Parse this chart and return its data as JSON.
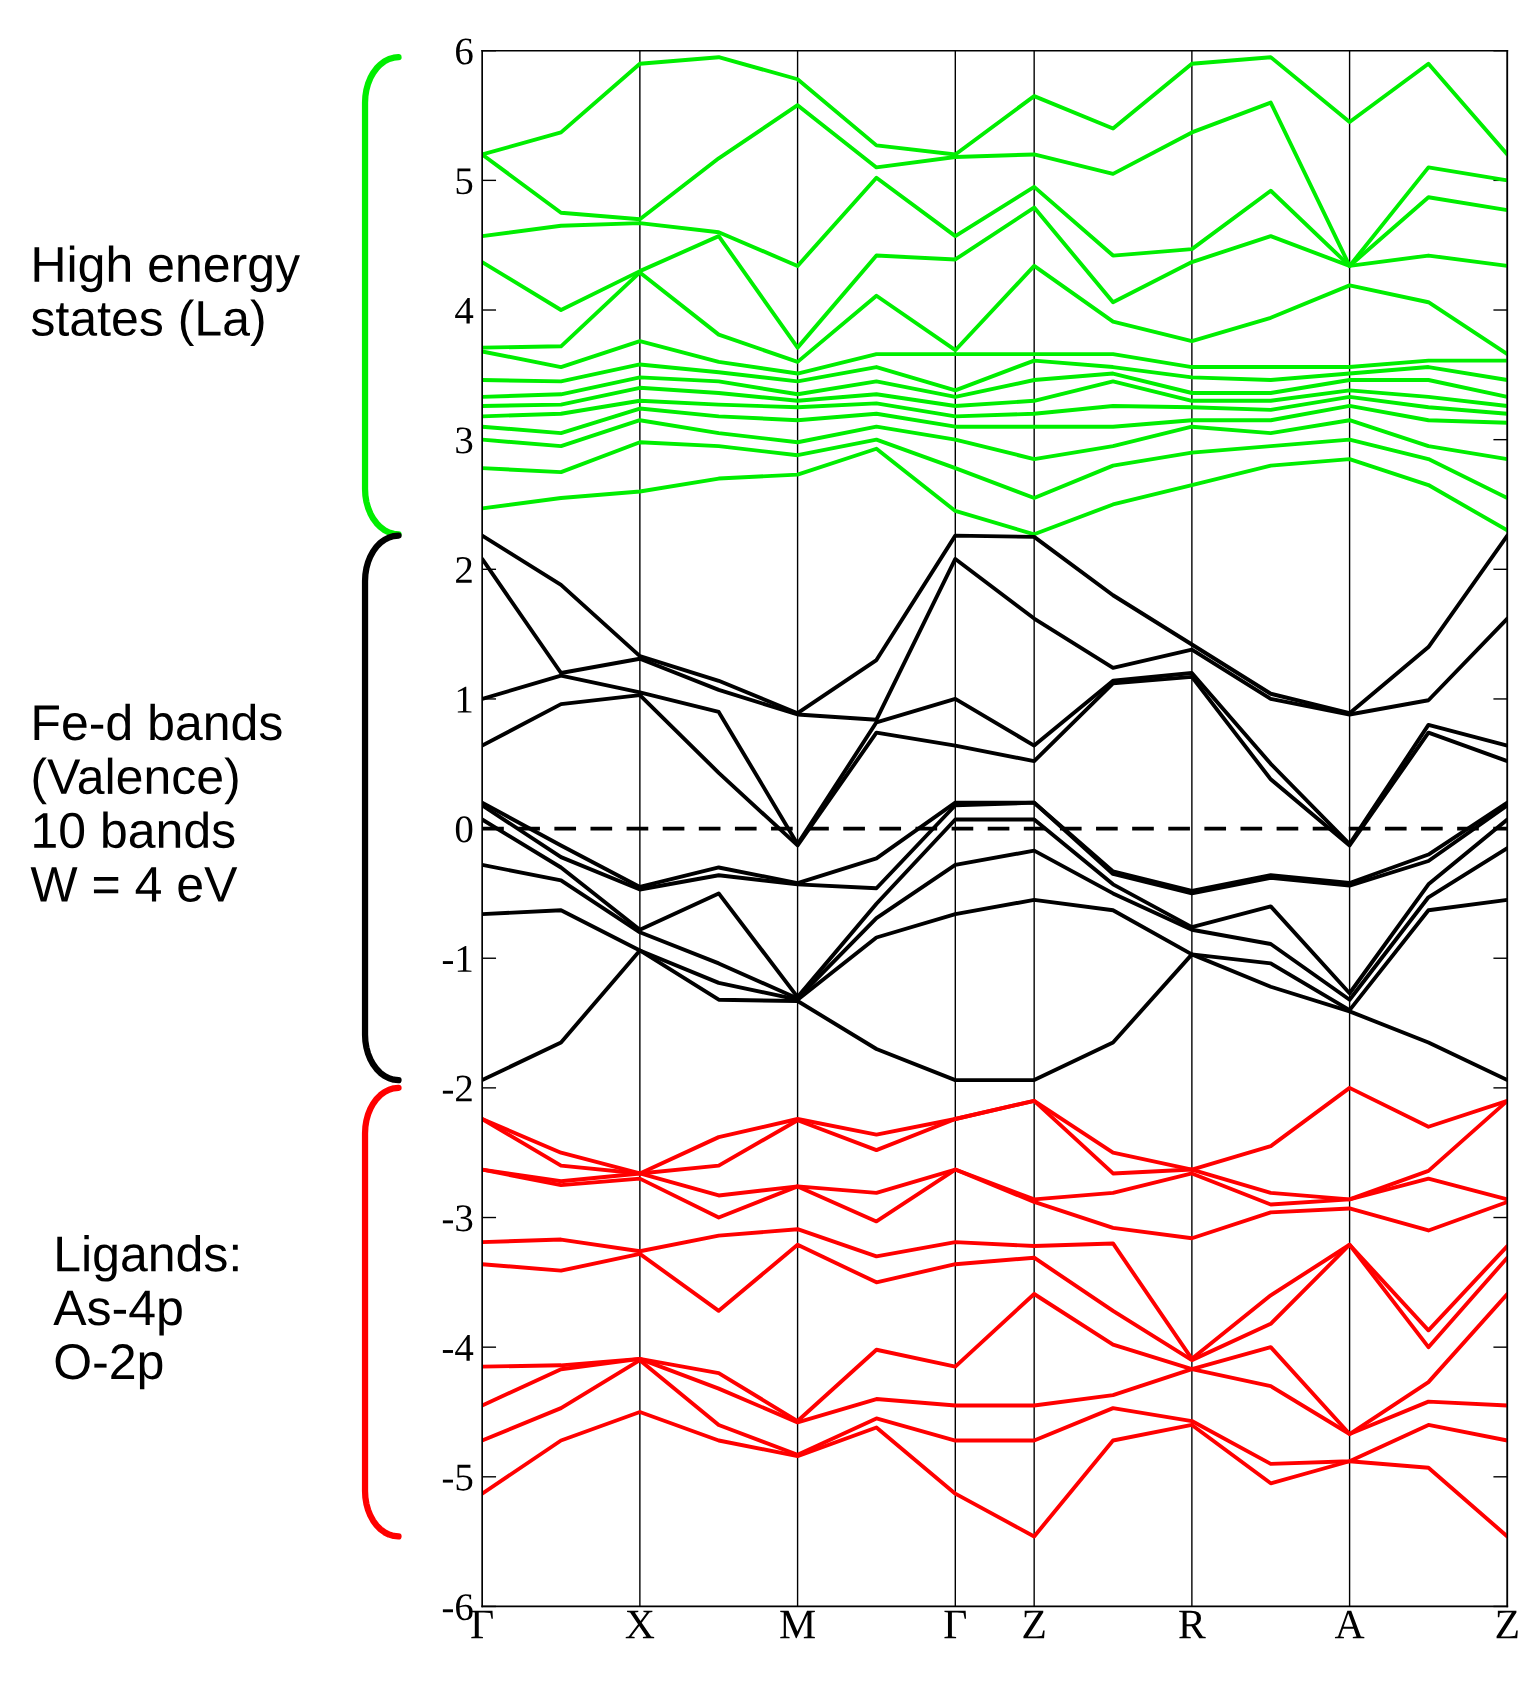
{
  "chart_data": {
    "type": "line",
    "categories": [
      "Γ",
      null,
      "X",
      null,
      "M",
      null,
      "Γ",
      "Z",
      null,
      "R",
      null,
      "A",
      null,
      "Z"
    ],
    "ylim": [
      -6,
      6
    ],
    "yticks": [
      -6,
      -5,
      -4,
      -3,
      -2,
      -1,
      0,
      1,
      2,
      3,
      4,
      5,
      6
    ],
    "grid": "x",
    "marker": "none",
    "line_style": "solid",
    "ref_lines": [
      {
        "axis": "y",
        "value": 0,
        "color": "#000000",
        "line_style": "dashed"
      }
    ],
    "annotations": [
      "High energy\nstates (La)",
      "Fe-d bands\n(Valence)\n10 bands\nW = 4 eV",
      "Ligands:\nAs-4p\nO-2p"
    ],
    "series": [
      {
        "color": "#00ee00",
        "values": [
          2.47,
          2.55,
          2.6,
          2.7,
          2.73,
          2.93,
          2.45,
          2.27,
          2.5,
          2.65,
          2.8,
          2.85,
          2.65,
          2.3
        ]
      },
      {
        "color": "#00ee00",
        "values": [
          2.78,
          2.75,
          2.98,
          2.95,
          2.88,
          3.0,
          2.78,
          2.55,
          2.8,
          2.9,
          2.95,
          3.0,
          2.85,
          2.55
        ]
      },
      {
        "color": "#00ee00",
        "values": [
          3.0,
          2.95,
          3.15,
          3.05,
          2.98,
          3.1,
          3.0,
          2.85,
          2.95,
          3.1,
          3.05,
          3.15,
          2.95,
          2.85
        ]
      },
      {
        "color": "#00ee00",
        "values": [
          3.1,
          3.05,
          3.24,
          3.18,
          3.15,
          3.2,
          3.1,
          3.1,
          3.1,
          3.15,
          3.15,
          3.26,
          3.15,
          3.13
        ]
      },
      {
        "color": "#00ee00",
        "values": [
          3.18,
          3.2,
          3.3,
          3.27,
          3.25,
          3.28,
          3.18,
          3.2,
          3.26,
          3.25,
          3.23,
          3.33,
          3.25,
          3.2
        ]
      },
      {
        "color": "#00ee00",
        "values": [
          3.26,
          3.27,
          3.4,
          3.36,
          3.3,
          3.35,
          3.26,
          3.3,
          3.45,
          3.3,
          3.3,
          3.38,
          3.33,
          3.26
        ]
      },
      {
        "color": "#00ee00",
        "values": [
          3.33,
          3.35,
          3.48,
          3.45,
          3.35,
          3.45,
          3.33,
          3.46,
          3.51,
          3.36,
          3.36,
          3.46,
          3.46,
          3.33
        ]
      },
      {
        "color": "#00ee00",
        "values": [
          3.46,
          3.45,
          3.58,
          3.52,
          3.45,
          3.56,
          3.38,
          3.61,
          3.56,
          3.48,
          3.46,
          3.51,
          3.56,
          3.46
        ]
      },
      {
        "color": "#00ee00",
        "values": [
          3.68,
          3.56,
          3.76,
          3.6,
          3.51,
          3.66,
          3.66,
          3.66,
          3.66,
          3.56,
          3.56,
          3.56,
          3.61,
          3.61
        ]
      },
      {
        "color": "#00ee00",
        "values": [
          3.71,
          3.72,
          4.29,
          3.81,
          3.6,
          4.11,
          3.69,
          4.34,
          3.91,
          3.76,
          3.94,
          4.19,
          4.06,
          3.66
        ]
      },
      {
        "color": "#00ee00",
        "values": [
          4.37,
          4.0,
          4.3,
          4.57,
          3.71,
          4.42,
          4.39,
          4.79,
          4.06,
          4.37,
          4.57,
          4.34,
          4.42,
          4.34
        ]
      },
      {
        "color": "#00ee00",
        "values": [
          4.57,
          4.65,
          4.67,
          4.6,
          4.34,
          5.02,
          4.57,
          4.95,
          4.42,
          4.47,
          4.92,
          4.34,
          4.87,
          4.77
        ]
      },
      {
        "color": "#00ee00",
        "values": [
          5.2,
          4.75,
          4.7,
          5.17,
          5.58,
          5.1,
          5.18,
          5.2,
          5.05,
          5.37,
          5.6,
          4.34,
          5.1,
          5.0
        ]
      },
      {
        "color": "#00ee00",
        "values": [
          5.2,
          5.37,
          5.9,
          5.95,
          5.78,
          5.27,
          5.2,
          5.65,
          5.4,
          5.9,
          5.95,
          5.45,
          5.9,
          5.2
        ]
      },
      {
        "color": "#000000",
        "values": [
          -1.94,
          -1.65,
          -0.94,
          -1.32,
          -1.33,
          -1.7,
          -1.94,
          -1.94,
          -1.65,
          -0.97,
          -1.22,
          -1.41,
          -1.65,
          -1.94
        ]
      },
      {
        "color": "#000000",
        "values": [
          -0.66,
          -0.63,
          -0.94,
          -1.19,
          -1.32,
          -0.84,
          -0.66,
          -0.55,
          -0.63,
          -0.97,
          -1.04,
          -1.4,
          -0.63,
          -0.55
        ]
      },
      {
        "color": "#000000",
        "values": [
          -0.28,
          -0.4,
          -0.8,
          -1.04,
          -1.31,
          -0.69,
          -0.28,
          -0.17,
          -0.5,
          -0.78,
          -0.89,
          -1.32,
          -0.53,
          -0.15
        ]
      },
      {
        "color": "#000000",
        "values": [
          0.07,
          -0.3,
          -0.78,
          -0.5,
          -1.3,
          -0.58,
          0.07,
          0.07,
          -0.43,
          -0.76,
          -0.6,
          -1.27,
          -0.43,
          0.07
        ]
      },
      {
        "color": "#000000",
        "values": [
          0.18,
          -0.22,
          -0.47,
          -0.36,
          -0.43,
          -0.46,
          0.18,
          0.2,
          -0.35,
          -0.5,
          -0.38,
          -0.44,
          -0.25,
          0.18
        ]
      },
      {
        "color": "#000000",
        "values": [
          0.2,
          -0.13,
          -0.45,
          -0.3,
          -0.42,
          -0.23,
          0.2,
          0.2,
          -0.33,
          -0.48,
          -0.36,
          -0.42,
          -0.2,
          0.2
        ]
      },
      {
        "color": "#000000",
        "values": [
          0.64,
          0.96,
          1.03,
          0.43,
          -0.13,
          0.74,
          0.64,
          0.52,
          1.12,
          1.17,
          0.38,
          -0.13,
          0.74,
          0.52
        ]
      },
      {
        "color": "#000000",
        "values": [
          1.0,
          1.18,
          1.05,
          0.9,
          -0.12,
          0.82,
          1.0,
          0.64,
          1.14,
          1.2,
          0.5,
          -0.12,
          0.8,
          0.64
        ]
      },
      {
        "color": "#000000",
        "values": [
          2.08,
          1.2,
          1.31,
          1.07,
          0.88,
          0.84,
          2.08,
          1.62,
          1.24,
          1.38,
          1.0,
          0.88,
          0.99,
          1.62
        ]
      },
      {
        "color": "#000000",
        "values": [
          2.26,
          1.88,
          1.33,
          1.14,
          0.89,
          1.3,
          2.26,
          2.25,
          1.8,
          1.42,
          1.04,
          0.89,
          1.4,
          2.26
        ]
      },
      {
        "color": "#ff0000",
        "values": [
          -2.24,
          -2.5,
          -2.66,
          -2.38,
          -2.24,
          -2.36,
          -2.24,
          -2.1,
          -2.5,
          -2.63,
          -2.45,
          -2.0,
          -2.3,
          -2.1
        ]
      },
      {
        "color": "#ff0000",
        "values": [
          -2.24,
          -2.6,
          -2.66,
          -2.6,
          -2.25,
          -2.48,
          -2.24,
          -2.1,
          -2.66,
          -2.63,
          -2.81,
          -2.86,
          -2.64,
          -2.1
        ]
      },
      {
        "color": "#ff0000",
        "values": [
          -2.63,
          -2.72,
          -2.66,
          -2.83,
          -2.76,
          -2.81,
          -2.63,
          -2.86,
          -2.81,
          -2.66,
          -2.9,
          -2.86,
          -2.7,
          -2.86
        ]
      },
      {
        "color": "#ff0000",
        "values": [
          -2.63,
          -2.75,
          -2.7,
          -3.0,
          -2.76,
          -3.03,
          -2.63,
          -2.88,
          -3.08,
          -3.16,
          -2.96,
          -2.93,
          -3.1,
          -2.88
        ]
      },
      {
        "color": "#ff0000",
        "values": [
          -3.19,
          -3.17,
          -3.26,
          -3.14,
          -3.09,
          -3.3,
          -3.19,
          -3.22,
          -3.2,
          -4.09,
          -3.6,
          -3.21,
          -3.87,
          -3.22
        ]
      },
      {
        "color": "#ff0000",
        "values": [
          -3.36,
          -3.41,
          -3.28,
          -3.72,
          -3.21,
          -3.5,
          -3.36,
          -3.31,
          -3.72,
          -4.1,
          -3.82,
          -3.21,
          -4.0,
          -3.31
        ]
      },
      {
        "color": "#ff0000",
        "values": [
          -4.15,
          -4.14,
          -4.09,
          -4.2,
          -4.57,
          -4.02,
          -4.15,
          -3.59,
          -3.98,
          -4.17,
          -4.0,
          -4.67,
          -4.27,
          -3.59
        ]
      },
      {
        "color": "#ff0000",
        "values": [
          -4.45,
          -4.17,
          -4.09,
          -4.32,
          -4.58,
          -4.4,
          -4.45,
          -4.45,
          -4.37,
          -4.17,
          -4.3,
          -4.67,
          -4.42,
          -4.45
        ]
      },
      {
        "color": "#ff0000",
        "values": [
          -4.72,
          -4.47,
          -4.1,
          -4.6,
          -4.83,
          -4.55,
          -4.72,
          -4.72,
          -4.47,
          -4.57,
          -4.9,
          -4.88,
          -4.6,
          -4.72
        ]
      },
      {
        "color": "#ff0000",
        "values": [
          -5.13,
          -4.72,
          -4.5,
          -4.72,
          -4.84,
          -4.62,
          -5.13,
          -5.46,
          -4.72,
          -4.6,
          -5.05,
          -4.88,
          -4.93,
          -5.46
        ]
      }
    ]
  }
}
